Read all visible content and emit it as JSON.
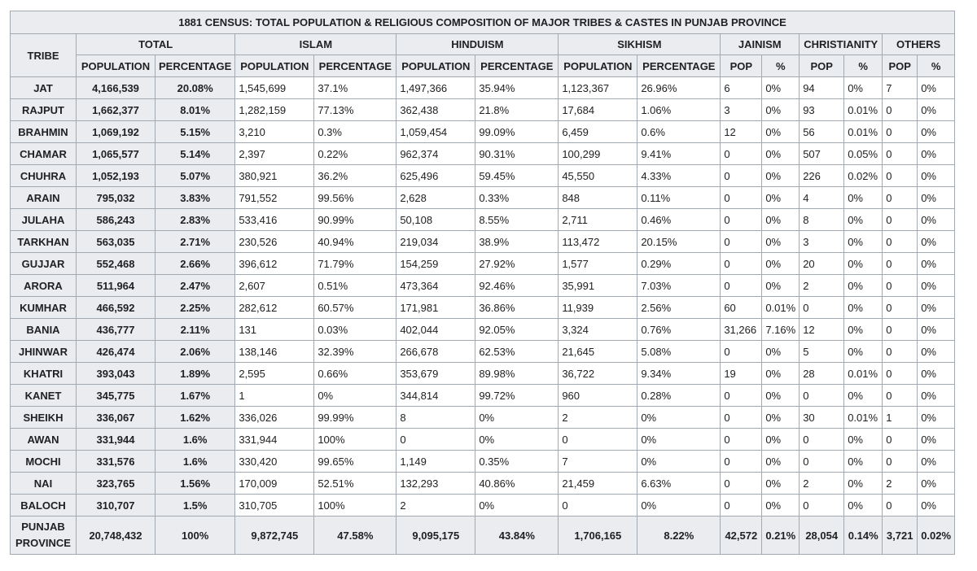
{
  "title": "1881 CENSUS: TOTAL POPULATION & RELIGIOUS COMPOSITION OF MAJOR TRIBES & CASTES IN PUNJAB PROVINCE",
  "tribe_header": "TRIBE",
  "groups": [
    "TOTAL",
    "ISLAM",
    "HINDUISM",
    "SIKHISM",
    "JAINISM",
    "CHRISTIANITY",
    "OTHERS"
  ],
  "subheaders": [
    "POPULATION",
    "PERCENTAGE",
    "POPULATION",
    "PERCENTAGE",
    "POPULATION",
    "PERCENTAGE",
    "POPULATION",
    "PERCENTAGE",
    "POP",
    "%",
    "POP",
    "%",
    "POP",
    "%"
  ],
  "rows": [
    [
      "JAT",
      "4,166,539",
      "20.08%",
      "1,545,699",
      "37.1%",
      "1,497,366",
      "35.94%",
      "1,123,367",
      "26.96%",
      "6",
      "0%",
      "94",
      "0%",
      "7",
      "0%"
    ],
    [
      "RAJPUT",
      "1,662,377",
      "8.01%",
      "1,282,159",
      "77.13%",
      "362,438",
      "21.8%",
      "17,684",
      "1.06%",
      "3",
      "0%",
      "93",
      "0.01%",
      "0",
      "0%"
    ],
    [
      "BRAHMIN",
      "1,069,192",
      "5.15%",
      "3,210",
      "0.3%",
      "1,059,454",
      "99.09%",
      "6,459",
      "0.6%",
      "12",
      "0%",
      "56",
      "0.01%",
      "0",
      "0%"
    ],
    [
      "CHAMAR",
      "1,065,577",
      "5.14%",
      "2,397",
      "0.22%",
      "962,374",
      "90.31%",
      "100,299",
      "9.41%",
      "0",
      "0%",
      "507",
      "0.05%",
      "0",
      "0%"
    ],
    [
      "CHUHRA",
      "1,052,193",
      "5.07%",
      "380,921",
      "36.2%",
      "625,496",
      "59.45%",
      "45,550",
      "4.33%",
      "0",
      "0%",
      "226",
      "0.02%",
      "0",
      "0%"
    ],
    [
      "ARAIN",
      "795,032",
      "3.83%",
      "791,552",
      "99.56%",
      "2,628",
      "0.33%",
      "848",
      "0.11%",
      "0",
      "0%",
      "4",
      "0%",
      "0",
      "0%"
    ],
    [
      "JULAHA",
      "586,243",
      "2.83%",
      "533,416",
      "90.99%",
      "50,108",
      "8.55%",
      "2,711",
      "0.46%",
      "0",
      "0%",
      "8",
      "0%",
      "0",
      "0%"
    ],
    [
      "TARKHAN",
      "563,035",
      "2.71%",
      "230,526",
      "40.94%",
      "219,034",
      "38.9%",
      "113,472",
      "20.15%",
      "0",
      "0%",
      "3",
      "0%",
      "0",
      "0%"
    ],
    [
      "GUJJAR",
      "552,468",
      "2.66%",
      "396,612",
      "71.79%",
      "154,259",
      "27.92%",
      "1,577",
      "0.29%",
      "0",
      "0%",
      "20",
      "0%",
      "0",
      "0%"
    ],
    [
      "ARORA",
      "511,964",
      "2.47%",
      "2,607",
      "0.51%",
      "473,364",
      "92.46%",
      "35,991",
      "7.03%",
      "0",
      "0%",
      "2",
      "0%",
      "0",
      "0%"
    ],
    [
      "KUMHAR",
      "466,592",
      "2.25%",
      "282,612",
      "60.57%",
      "171,981",
      "36.86%",
      "11,939",
      "2.56%",
      "60",
      "0.01%",
      "0",
      "0%",
      "0",
      "0%"
    ],
    [
      "BANIA",
      "436,777",
      "2.11%",
      "131",
      "0.03%",
      "402,044",
      "92.05%",
      "3,324",
      "0.76%",
      "31,266",
      "7.16%",
      "12",
      "0%",
      "0",
      "0%"
    ],
    [
      "JHINWAR",
      "426,474",
      "2.06%",
      "138,146",
      "32.39%",
      "266,678",
      "62.53%",
      "21,645",
      "5.08%",
      "0",
      "0%",
      "5",
      "0%",
      "0",
      "0%"
    ],
    [
      "KHATRI",
      "393,043",
      "1.89%",
      "2,595",
      "0.66%",
      "353,679",
      "89.98%",
      "36,722",
      "9.34%",
      "19",
      "0%",
      "28",
      "0.01%",
      "0",
      "0%"
    ],
    [
      "KANET",
      "345,775",
      "1.67%",
      "1",
      "0%",
      "344,814",
      "99.72%",
      "960",
      "0.28%",
      "0",
      "0%",
      "0",
      "0%",
      "0",
      "0%"
    ],
    [
      "SHEIKH",
      "336,067",
      "1.62%",
      "336,026",
      "99.99%",
      "8",
      "0%",
      "2",
      "0%",
      "0",
      "0%",
      "30",
      "0.01%",
      "1",
      "0%"
    ],
    [
      "AWAN",
      "331,944",
      "1.6%",
      "331,944",
      "100%",
      "0",
      "0%",
      "0",
      "0%",
      "0",
      "0%",
      "0",
      "0%",
      "0",
      "0%"
    ],
    [
      "MOCHI",
      "331,576",
      "1.6%",
      "330,420",
      "99.65%",
      "1,149",
      "0.35%",
      "7",
      "0%",
      "0",
      "0%",
      "0",
      "0%",
      "0",
      "0%"
    ],
    [
      "NAI",
      "323,765",
      "1.56%",
      "170,009",
      "52.51%",
      "132,293",
      "40.86%",
      "21,459",
      "6.63%",
      "0",
      "0%",
      "2",
      "0%",
      "2",
      "0%"
    ],
    [
      "BALOCH",
      "310,707",
      "1.5%",
      "310,705",
      "100%",
      "2",
      "0%",
      "0",
      "0%",
      "0",
      "0%",
      "0",
      "0%",
      "0",
      "0%"
    ]
  ],
  "total_row": [
    "PUNJAB PROVINCE",
    "20,748,432",
    "100%",
    "9,872,745",
    "47.58%",
    "9,095,175",
    "43.84%",
    "1,706,165",
    "8.22%",
    "42,572",
    "0.21%",
    "28,054",
    "0.14%",
    "3,721",
    "0.02%"
  ]
}
